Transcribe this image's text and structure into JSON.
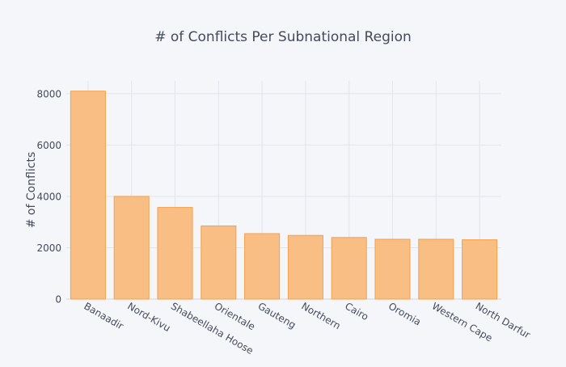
{
  "chart_data": {
    "type": "bar",
    "title": "# of Conflicts Per Subnational Region",
    "xlabel": "",
    "ylabel": "# of Conflicts",
    "categories": [
      "Banaadir",
      "Nord-Kivu",
      "Shabeellaha Hoose",
      "Orientale",
      "Gauteng",
      "Northern",
      "Cairo",
      "Oromia",
      "Western Cape",
      "North Darfur"
    ],
    "values": [
      8100,
      4000,
      3570,
      2850,
      2550,
      2480,
      2400,
      2330,
      2330,
      2310
    ],
    "ylim": [
      0,
      8500
    ],
    "yticks": [
      0,
      2000,
      4000,
      6000,
      8000
    ],
    "grid": true,
    "colors": {
      "bar_fill": "#f9be84",
      "bar_stroke": "#f5a04b",
      "grid": "#e1e4ec",
      "text": "#444a5a",
      "background": "#f5f6fa"
    }
  }
}
